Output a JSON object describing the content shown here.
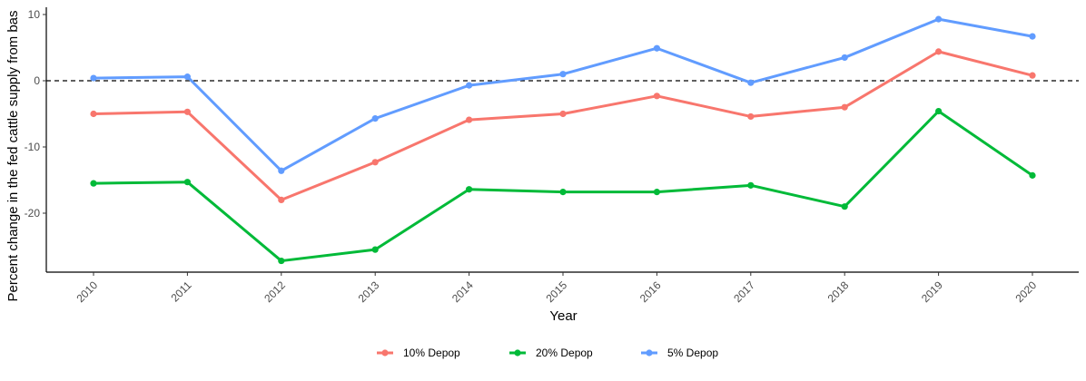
{
  "chart_data": {
    "type": "line",
    "title": "",
    "xlabel": "Year",
    "ylabel": "Percent change in the fed cattle supply from bas",
    "x": [
      "2010",
      "2011",
      "2012",
      "2013",
      "2014",
      "2015",
      "2016",
      "2017",
      "2018",
      "2019",
      "2020"
    ],
    "ylim": [
      -29,
      11
    ],
    "yticks": [
      10,
      0,
      -10,
      -20
    ],
    "ytick_labels": [
      "10",
      "0",
      "-10",
      "-20"
    ],
    "reference_line": {
      "y": 0,
      "style": "dashed",
      "color": "#000000"
    },
    "grid": false,
    "legend_position": "bottom",
    "series": [
      {
        "name": "10% Depop",
        "color": "#F8766D",
        "values": [
          -5.0,
          -4.7,
          -18.0,
          -12.3,
          -5.9,
          -5.0,
          -2.3,
          -5.4,
          -4.0,
          4.4,
          0.8
        ]
      },
      {
        "name": "20% Depop",
        "color": "#00BA38",
        "values": [
          -15.5,
          -15.3,
          -27.2,
          -25.5,
          -16.4,
          -16.8,
          -16.8,
          -15.8,
          -19.0,
          -4.6,
          -14.3
        ]
      },
      {
        "name": "5% Depop",
        "color": "#619CFF",
        "values": [
          0.4,
          0.6,
          -13.6,
          -5.7,
          -0.7,
          1.0,
          4.9,
          -0.3,
          3.5,
          9.3,
          6.7
        ]
      }
    ]
  }
}
